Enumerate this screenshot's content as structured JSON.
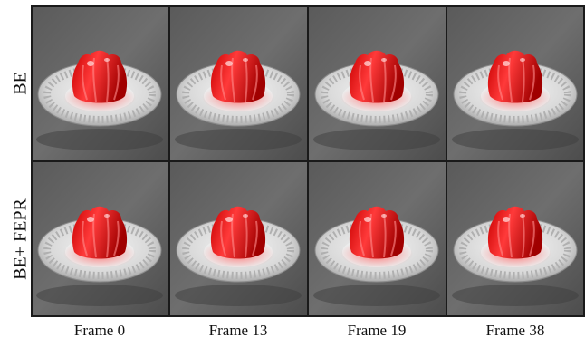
{
  "figure": {
    "row_labels": [
      "BE",
      "BE+ FEPR"
    ],
    "column_labels": [
      "Frame 0",
      "Frame 13",
      "Frame 19",
      "Frame 38"
    ]
  }
}
